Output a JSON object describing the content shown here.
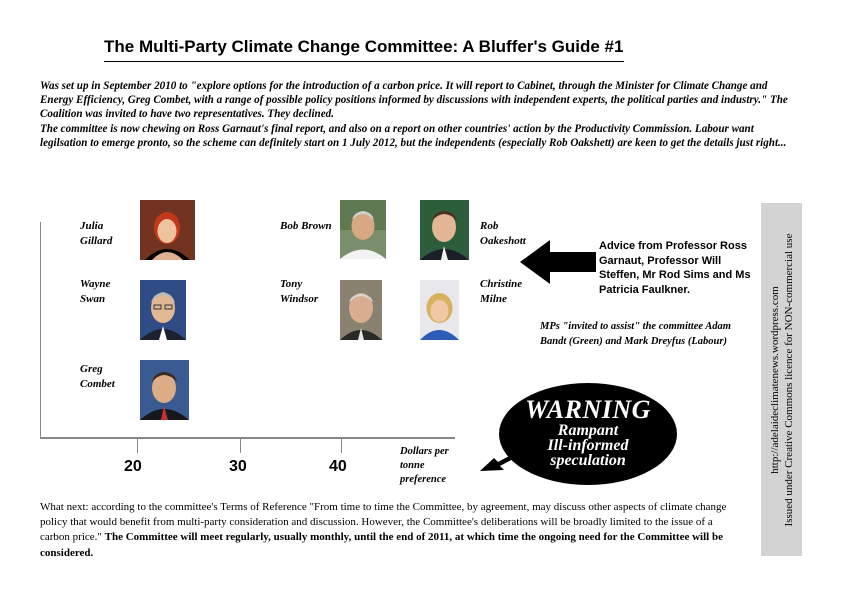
{
  "title": "The Multi-Party Climate Change Committee: A Bluffer's Guide #1",
  "intro": {
    "line1": "Was set up in September 2010 to \"explore options for the introduction of a carbon price. It will report to Cabinet, through the Minister for Climate Change and Energy Efficiency, Greg Combet, with a range of possible policy positions informed by discussions with independent experts, the political parties and industry.\"  The Coalition was invited to have two representatives. They declined.",
    "line2": "The committee is now chewing on Ross Garnaut's final report, and also on a report on other countries' action by the Productivity Commission. Labour want legilsation to emerge pronto, so the scheme can definitely start on 1 July 2012, but the independents (especially Rob Oakshett) are keen to get the details just right..."
  },
  "members": [
    {
      "name_line1": "Julia",
      "name_line2": "Gillard",
      "icon": "portrait-julia-gillard"
    },
    {
      "name_line1": "Wayne",
      "name_line2": "Swan",
      "icon": "portrait-wayne-swan"
    },
    {
      "name_line1": "Greg",
      "name_line2": "Combet",
      "icon": "portrait-greg-combet"
    },
    {
      "name_line1": "Bob Brown",
      "name_line2": "",
      "icon": "portrait-bob-brown"
    },
    {
      "name_line1": "Tony",
      "name_line2": "Windsor",
      "icon": "portrait-tony-windsor"
    },
    {
      "name_line1": "Rob",
      "name_line2": "Oakeshott",
      "icon": "portrait-rob-oakeshott"
    },
    {
      "name_line1": "Christine",
      "name_line2": "Milne",
      "icon": "portrait-christine-milne"
    }
  ],
  "axis": {
    "ticks": [
      "20",
      "30",
      "40"
    ],
    "unit": "Dollars per tonne preference"
  },
  "advice": "Advice from Professor Ross Garnaut, Professor Will Steffen, Mr Rod Sims and Ms Patricia Faulkner.",
  "mps": "MPs \"invited to assist\" the committee Adam Bandt (Green) and Mark Dreyfus (Labour)",
  "warning": {
    "big": "WARNING",
    "line1": "Rampant",
    "line2": "Ill-informed",
    "line3": "speculation"
  },
  "sidebar": {
    "url": "http://adelaideclimatenews.wordpress.com",
    "licence": "Issued under Creative Commons licence for NON-commercial use"
  },
  "footer": {
    "normal": "What next: according to the committee's Terms of Reference \"From time to time the Committee, by agreement, may discuss other aspects of climate change policy that would benefit from multi-party consideration and discussion. However, the Committee's deliberations will be broadly limited to the issue of a carbon price.\"",
    "bold": "The Committee will meet regularly, usually monthly, until the end of 2011, at which time the ongoing need for the Committee will be considered."
  },
  "colors": {
    "axis": "#888888",
    "sidebar_bg": "#d3d3d3",
    "warning_bg": "#000000"
  }
}
